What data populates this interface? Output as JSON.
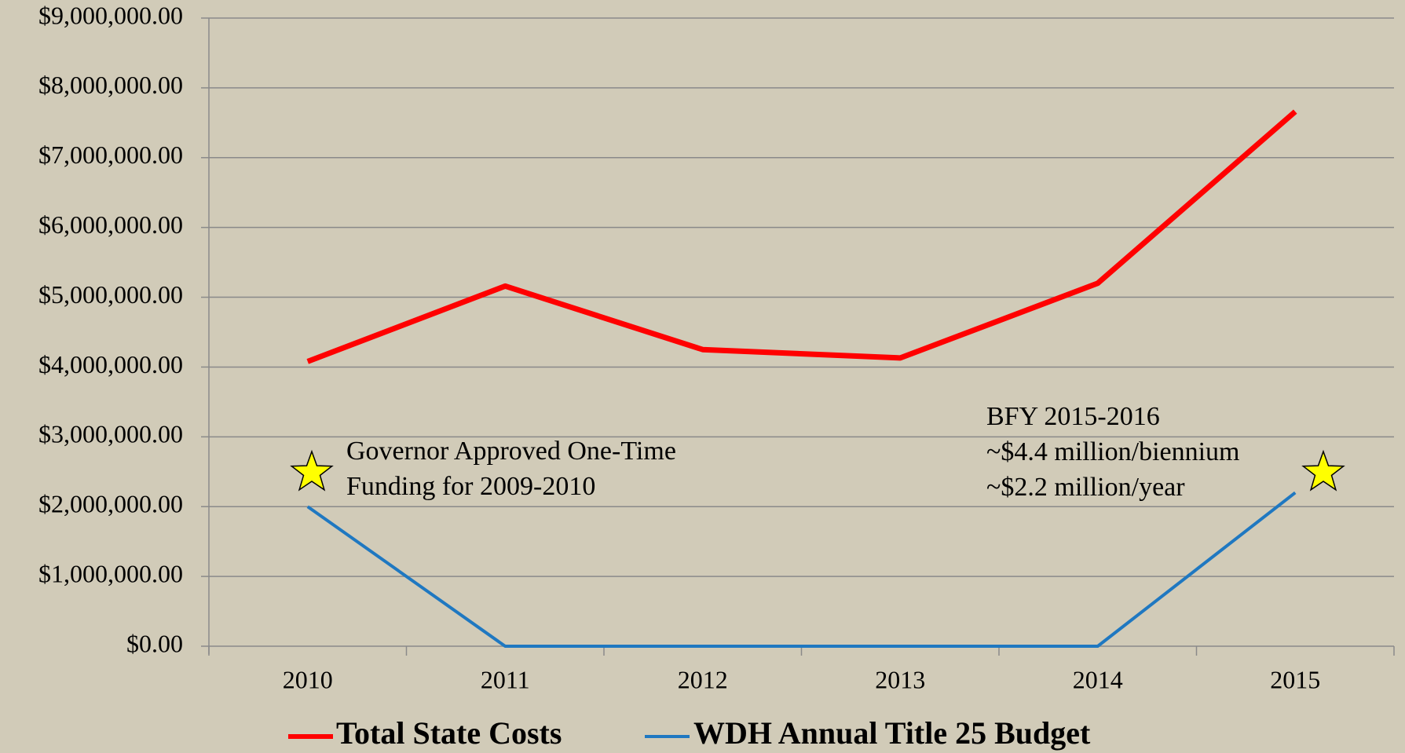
{
  "chart_data": {
    "type": "line",
    "categories": [
      "2010",
      "2011",
      "2012",
      "2013",
      "2014",
      "2015"
    ],
    "series": [
      {
        "name": "Total State Costs",
        "color": "#ff0000",
        "values": [
          4080000,
          5160000,
          4250000,
          4130000,
          5200000,
          7660000
        ]
      },
      {
        "name": "WDH Annual Title 25 Budget",
        "color": "#1f78c1",
        "values": [
          2000000,
          0,
          0,
          0,
          0,
          2200000
        ]
      }
    ],
    "ylim": [
      0,
      9000000
    ],
    "yticks": [
      {
        "value": 0,
        "label": "$0.00"
      },
      {
        "value": 1000000,
        "label": "$1,000,000.00"
      },
      {
        "value": 2000000,
        "label": "$2,000,000.00"
      },
      {
        "value": 3000000,
        "label": "$3,000,000.00"
      },
      {
        "value": 4000000,
        "label": "$4,000,000.00"
      },
      {
        "value": 5000000,
        "label": "$5,000,000.00"
      },
      {
        "value": 6000000,
        "label": "$6,000,000.00"
      },
      {
        "value": 7000000,
        "label": "$7,000,000.00"
      },
      {
        "value": 8000000,
        "label": "$8,000,000.00"
      },
      {
        "value": 9000000,
        "label": "$9,000,000.00"
      }
    ],
    "grid": true,
    "legend": "bottom",
    "annotations": [
      {
        "lines": [
          "Governor Approved One-Time",
          "Funding for 2009-2010"
        ]
      },
      {
        "lines": [
          "BFY 2015-2016",
          "~$4.4 million/biennium",
          "~$2.2 million/year"
        ]
      }
    ]
  }
}
